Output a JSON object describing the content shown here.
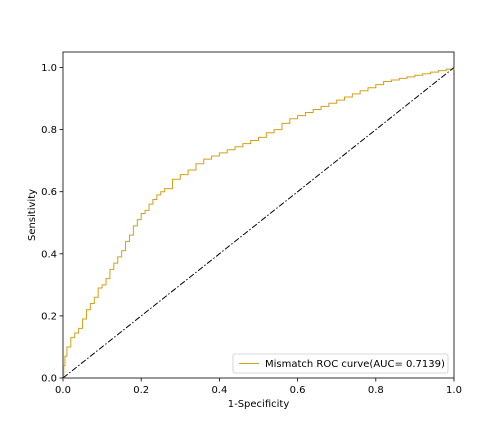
{
  "chart_data": {
    "type": "line",
    "title": "",
    "xlabel": "1-Specificity",
    "ylabel": "Sensitivity",
    "xlim": [
      0.0,
      1.0
    ],
    "ylim": [
      0.0,
      1.05
    ],
    "xticks": [
      "0.0",
      "0.2",
      "0.4",
      "0.6",
      "0.8",
      "1.0"
    ],
    "yticks": [
      "0.0",
      "0.2",
      "0.4",
      "0.6",
      "0.8",
      "1.0"
    ],
    "grid": false,
    "legend_position": "lower-right",
    "series": [
      {
        "name": "Mismatch ROC curve(AUC= 0.7139)",
        "color": "#d4a017",
        "style": "step",
        "x": [
          0.0,
          0.002,
          0.005,
          0.01,
          0.02,
          0.03,
          0.04,
          0.05,
          0.06,
          0.07,
          0.08,
          0.09,
          0.1,
          0.11,
          0.12,
          0.13,
          0.14,
          0.15,
          0.16,
          0.17,
          0.18,
          0.19,
          0.2,
          0.21,
          0.22,
          0.23,
          0.24,
          0.25,
          0.26,
          0.28,
          0.3,
          0.32,
          0.34,
          0.36,
          0.38,
          0.4,
          0.42,
          0.44,
          0.46,
          0.48,
          0.5,
          0.52,
          0.54,
          0.56,
          0.58,
          0.6,
          0.62,
          0.64,
          0.66,
          0.68,
          0.7,
          0.72,
          0.74,
          0.76,
          0.78,
          0.8,
          0.82,
          0.84,
          0.86,
          0.88,
          0.9,
          0.92,
          0.94,
          0.96,
          0.98,
          1.0
        ],
        "y": [
          0.0,
          0.04,
          0.07,
          0.1,
          0.13,
          0.145,
          0.16,
          0.19,
          0.22,
          0.24,
          0.26,
          0.29,
          0.3,
          0.32,
          0.35,
          0.37,
          0.39,
          0.41,
          0.44,
          0.46,
          0.49,
          0.51,
          0.53,
          0.54,
          0.56,
          0.575,
          0.59,
          0.6,
          0.61,
          0.64,
          0.655,
          0.67,
          0.69,
          0.705,
          0.715,
          0.725,
          0.735,
          0.745,
          0.755,
          0.765,
          0.775,
          0.79,
          0.8,
          0.82,
          0.835,
          0.845,
          0.855,
          0.865,
          0.875,
          0.885,
          0.895,
          0.905,
          0.915,
          0.925,
          0.935,
          0.945,
          0.955,
          0.96,
          0.965,
          0.97,
          0.975,
          0.98,
          0.985,
          0.99,
          0.995,
          1.0
        ]
      },
      {
        "name": "",
        "color": "#000000",
        "style": "dash-dot",
        "x": [
          0.0,
          1.0
        ],
        "y": [
          0.0,
          1.0
        ]
      }
    ]
  }
}
